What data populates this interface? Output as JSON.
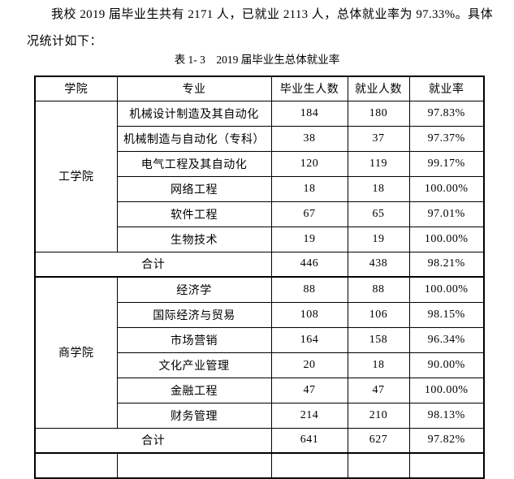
{
  "document": {
    "paragraph_line1": "我校 2019 届毕业生共有 2171 人，已就业 2113 人，总体就业率为 97.33%。具体情",
    "paragraph_line2": "况统计如下：",
    "table_caption": "表 1- 3　2019 届毕业生总体就业率"
  },
  "table": {
    "headers": [
      "学院",
      "专业",
      "毕业生人数",
      "就业人数",
      "就业率"
    ],
    "groups": [
      {
        "college": "工学院",
        "rows": [
          {
            "major": "机械设计制造及其自动化",
            "graduates": "184",
            "employed": "180",
            "rate": "97.83%"
          },
          {
            "major": "机械制造与自动化（专科）",
            "graduates": "38",
            "employed": "37",
            "rate": "97.37%"
          },
          {
            "major": "电气工程及其自动化",
            "graduates": "120",
            "employed": "119",
            "rate": "99.17%"
          },
          {
            "major": "网络工程",
            "graduates": "18",
            "employed": "18",
            "rate": "100.00%"
          },
          {
            "major": "软件工程",
            "graduates": "67",
            "employed": "65",
            "rate": "97.01%"
          },
          {
            "major": "生物技术",
            "graduates": "19",
            "employed": "19",
            "rate": "100.00%"
          }
        ],
        "total": {
          "label": "合计",
          "graduates": "446",
          "employed": "438",
          "rate": "98.21%"
        }
      },
      {
        "college": "商学院",
        "rows": [
          {
            "major": "经济学",
            "graduates": "88",
            "employed": "88",
            "rate": "100.00%"
          },
          {
            "major": "国际经济与贸易",
            "graduates": "108",
            "employed": "106",
            "rate": "98.15%"
          },
          {
            "major": "市场营销",
            "graduates": "164",
            "employed": "158",
            "rate": "96.34%"
          },
          {
            "major": "文化产业管理",
            "graduates": "20",
            "employed": "18",
            "rate": "90.00%"
          },
          {
            "major": "金融工程",
            "graduates": "47",
            "employed": "47",
            "rate": "100.00%"
          },
          {
            "major": "财务管理",
            "graduates": "214",
            "employed": "210",
            "rate": "98.13%"
          }
        ],
        "total": {
          "label": "合计",
          "graduates": "641",
          "employed": "627",
          "rate": "97.82%"
        }
      }
    ]
  }
}
